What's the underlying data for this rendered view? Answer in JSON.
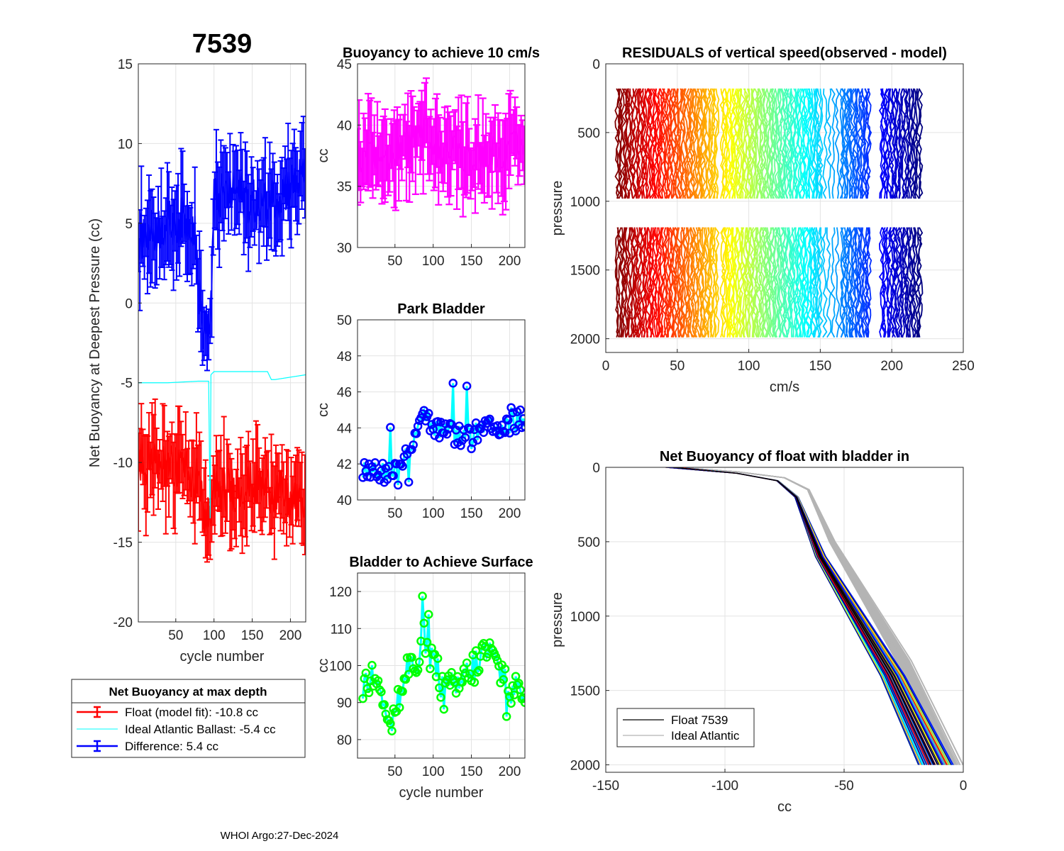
{
  "figure_title": "7539",
  "footer": "WHOI Argo:27-Dec-2024",
  "legend1": {
    "title": "Net Buoyancy at max depth",
    "items": [
      "Float (model fit): -10.8 cc",
      "Ideal Atlantic Ballast:  -5.4 cc",
      "Difference:   5.4 cc"
    ],
    "colors": [
      "#ff0000",
      "#00ffff",
      "#0000ff"
    ]
  },
  "legend2": {
    "items": [
      "Float 7539",
      "Ideal Atlantic"
    ],
    "colors": [
      "#000000",
      "#b4b4b4"
    ]
  },
  "chart_data": [
    {
      "id": "net",
      "type": "line",
      "title": "",
      "xlabel": "cycle number",
      "ylabel": "Net Buoyancy at Deepest Pressure (cc)",
      "xlim": [
        1,
        220
      ],
      "ylim": [
        -20,
        15
      ],
      "xticks": [
        50,
        100,
        150,
        200
      ],
      "yticks": [
        -20,
        -15,
        -10,
        -5,
        0,
        5,
        10,
        15
      ],
      "series": [
        {
          "name": "Float (model fit)",
          "color": "#ff0000",
          "errorbars": true,
          "anchors_x": [
            1,
            20,
            40,
            60,
            80,
            85,
            95,
            100,
            130,
            160,
            190,
            200,
            220
          ],
          "anchors_y": [
            -9.8,
            -10.2,
            -10.3,
            -10.6,
            -11.0,
            -13.0,
            -13.5,
            -11.8,
            -11.6,
            -11.4,
            -12.0,
            -12.5,
            -12.8
          ]
        },
        {
          "name": "Ideal Atlantic Ballast",
          "color": "#00ffff",
          "errorbars": false,
          "anchors_x": [
            1,
            40,
            80,
            93,
            95,
            96,
            100,
            170,
            175,
            180,
            220
          ],
          "anchors_y": [
            -5.0,
            -5.0,
            -4.9,
            -4.9,
            -13.5,
            -4.5,
            -4.3,
            -4.3,
            -4.8,
            -4.8,
            -4.5
          ]
        },
        {
          "name": "Difference",
          "color": "#0000ff",
          "errorbars": true,
          "anchors_x": [
            1,
            20,
            40,
            60,
            75,
            80,
            85,
            95,
            100,
            130,
            160,
            190,
            220
          ],
          "anchors_y": [
            4.0,
            4.5,
            5.0,
            5.2,
            5.0,
            0.5,
            -1.5,
            -1.5,
            6.5,
            7.0,
            6.0,
            7.0,
            8.0
          ]
        }
      ]
    },
    {
      "id": "buoy10",
      "type": "line",
      "title": "Buoyancy to achieve 10 cm/s",
      "xlabel": "",
      "ylabel": "cc",
      "xlim": [
        1,
        220
      ],
      "ylim": [
        30,
        45
      ],
      "xticks": [
        50,
        100,
        150,
        200
      ],
      "yticks": [
        30,
        35,
        40,
        45
      ],
      "series": [
        {
          "name": "buoyancy",
          "color": "#ff00ff",
          "errorbars": true,
          "anchors_x": [
            1,
            40,
            80,
            90,
            110,
            150,
            190,
            220
          ],
          "anchors_y": [
            37.0,
            37.5,
            38.5,
            40.0,
            38.0,
            37.5,
            38.0,
            38.0
          ]
        }
      ]
    },
    {
      "id": "park",
      "type": "line",
      "title": "Park Bladder",
      "xlabel": "",
      "ylabel": "cc",
      "xlim": [
        1,
        220
      ],
      "ylim": [
        40,
        50
      ],
      "xticks": [
        50,
        100,
        150,
        200
      ],
      "yticks": [
        40,
        42,
        44,
        46,
        48,
        50
      ],
      "series": [
        {
          "name": "park bladder",
          "color": "#00ffff",
          "marker_color": "#0000ff",
          "anchors_x": [
            1,
            20,
            40,
            60,
            70,
            85,
            100,
            140,
            180,
            220
          ],
          "anchors_y": [
            41.5,
            41.8,
            41.5,
            42.0,
            43.0,
            45.0,
            44.0,
            43.5,
            44.0,
            44.5
          ]
        }
      ]
    },
    {
      "id": "surf",
      "type": "line",
      "title": "Bladder to Achieve Surface",
      "xlabel": "cycle number",
      "ylabel": "cc",
      "xlim": [
        1,
        220
      ],
      "ylim": [
        75,
        125
      ],
      "xticks": [
        50,
        100,
        150,
        200
      ],
      "yticks": [
        80,
        90,
        100,
        110,
        120
      ],
      "series": [
        {
          "name": "surface bladder",
          "color": "#00ffff",
          "marker_color": "#00ff00",
          "anchors_x": [
            1,
            25,
            45,
            65,
            95,
            115,
            140,
            170,
            200,
            220
          ],
          "anchors_y": [
            90,
            100,
            84,
            98,
            104,
            92,
            96,
            104,
            95,
            90
          ]
        }
      ]
    },
    {
      "id": "resid",
      "type": "line",
      "title": "RESIDUALS of vertical speed(observed - model)",
      "xlabel": "cm/s",
      "ylabel": "pressure",
      "xlim": [
        0,
        250
      ],
      "ylim": [
        0,
        2100
      ],
      "y_reversed": true,
      "xticks": [
        0,
        50,
        100,
        150,
        200,
        250
      ],
      "yticks": [
        0,
        500,
        1000,
        1500,
        2000
      ],
      "profile_bands": [
        [
          180,
          1000
        ],
        [
          1190,
          2000
        ]
      ],
      "profile_offsets_start": 8,
      "profile_offsets_end": 220,
      "profile_count": 220,
      "colormap": "jet"
    },
    {
      "id": "nbprof",
      "type": "line",
      "title": "Net Buoyancy of float with bladder in",
      "xlabel": "cc",
      "ylabel": "pressure",
      "xlim": [
        -150,
        0
      ],
      "ylim": [
        0,
        2050
      ],
      "y_reversed": true,
      "xticks": [
        -150,
        -100,
        -50,
        0
      ],
      "yticks": [
        0,
        500,
        1000,
        1500,
        2000
      ],
      "series": [
        {
          "name": "Float 7539",
          "color": "#000000",
          "profile_x": [
            -122,
            -95,
            -78,
            -70,
            -60,
            -45,
            -30,
            -12
          ],
          "profile_p": [
            0,
            40,
            90,
            200,
            600,
            1000,
            1400,
            2000
          ]
        },
        {
          "name": "Ideal Atlantic",
          "color": "#b4b4b4",
          "profile_x": [
            -120,
            -95,
            -75,
            -65,
            -55,
            -40,
            -25,
            -5
          ],
          "profile_p": [
            0,
            30,
            70,
            150,
            500,
            900,
            1300,
            2000
          ]
        }
      ],
      "ensemble_colors": [
        "#00008f",
        "#0000ff",
        "#0050ff",
        "#00a0ff",
        "#00ffff",
        "#80ff80",
        "#ffff00",
        "#ff0000"
      ]
    }
  ]
}
